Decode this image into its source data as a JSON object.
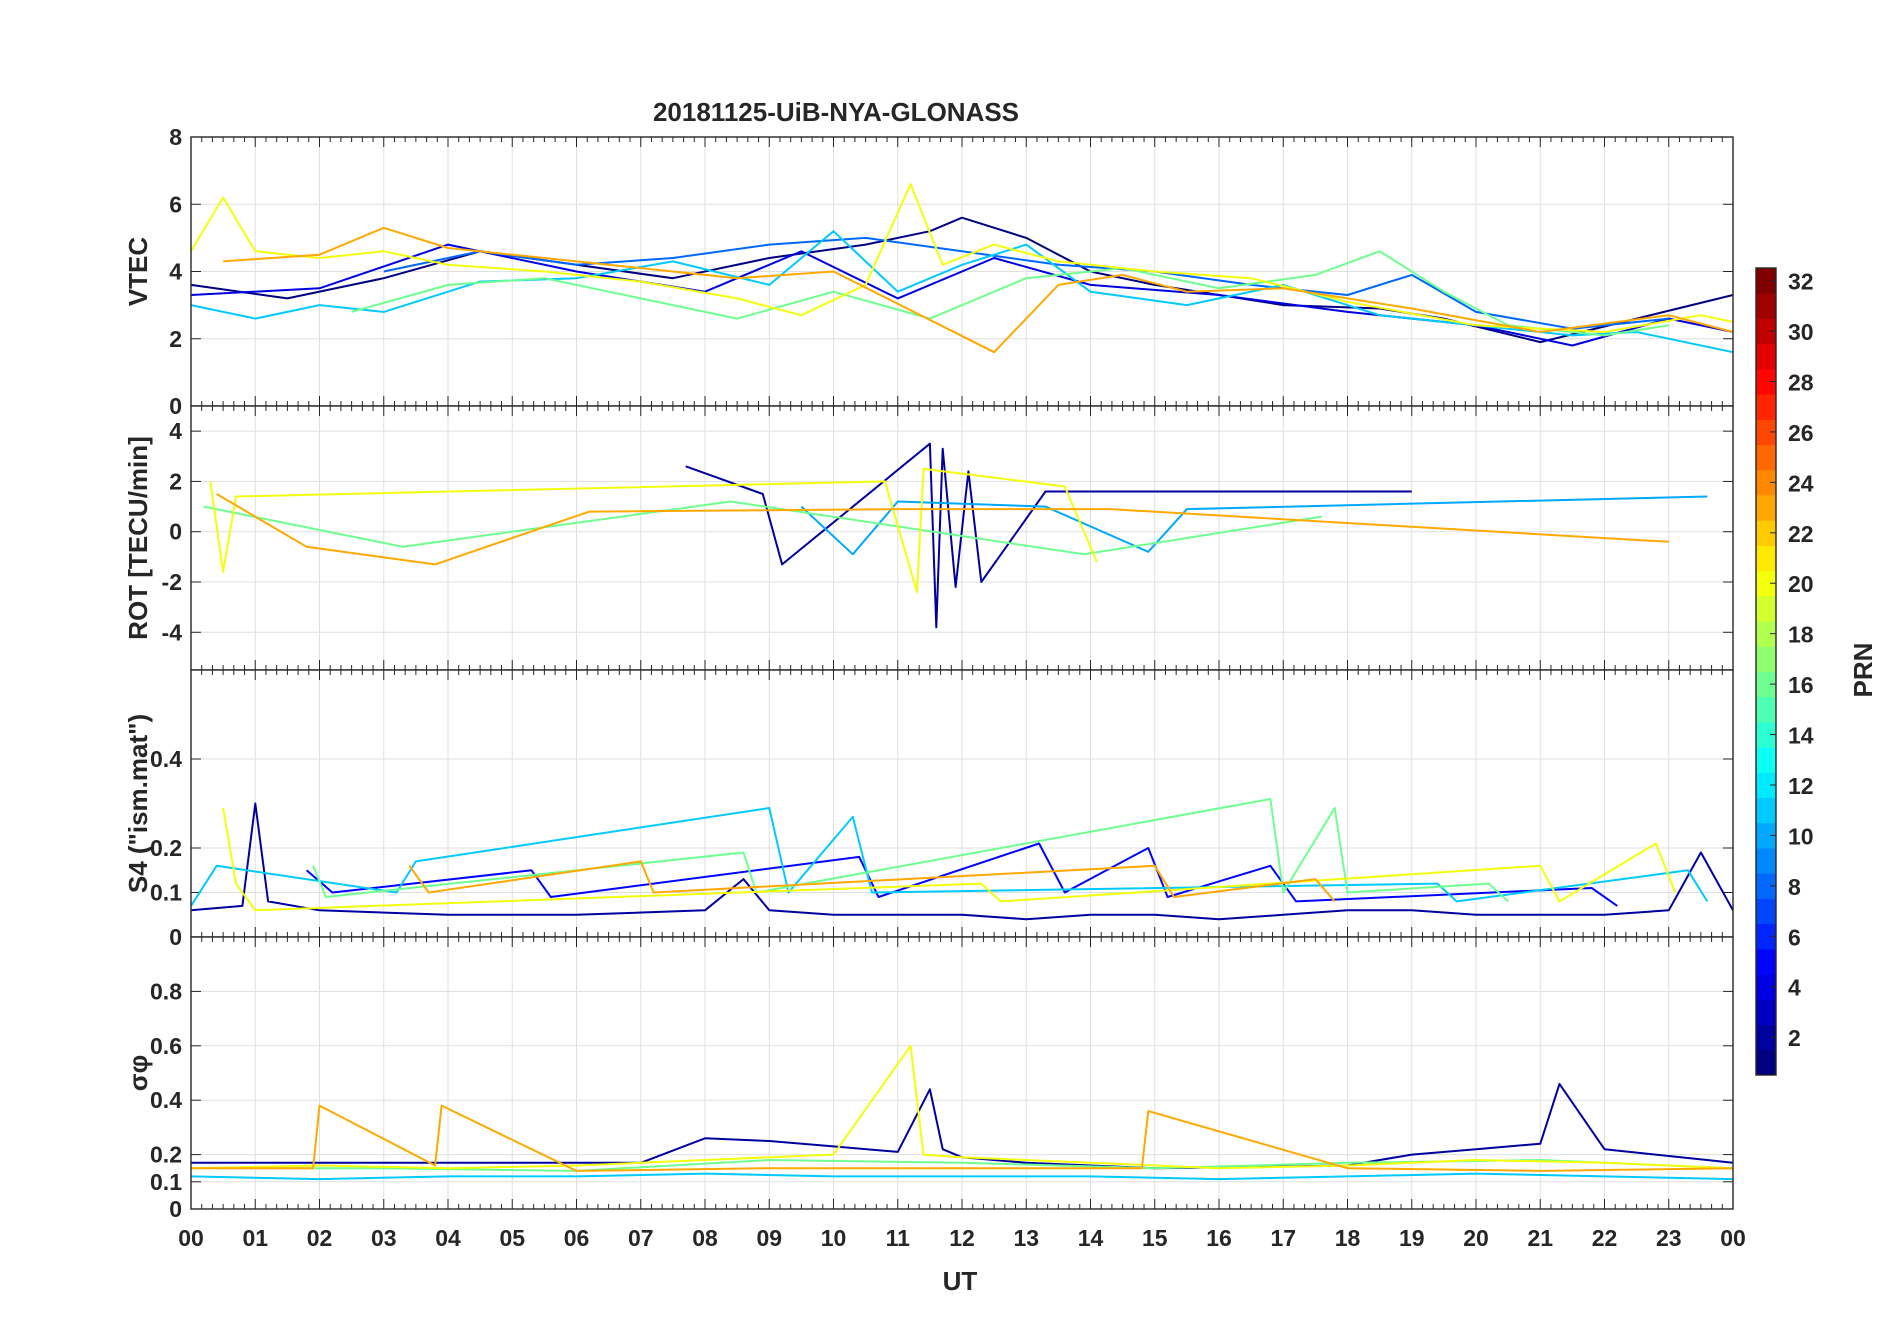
{
  "chart_data": {
    "type": "line",
    "title": "20181125-UiB-NYA-GLONASS",
    "xlabel": "UT",
    "x_tick_labels": [
      "00",
      "01",
      "02",
      "03",
      "04",
      "05",
      "06",
      "07",
      "08",
      "09",
      "10",
      "11",
      "12",
      "13",
      "14",
      "15",
      "16",
      "17",
      "18",
      "19",
      "20",
      "21",
      "22",
      "23",
      "00"
    ],
    "xlim": [
      0,
      24
    ],
    "grid": true,
    "colorbar": {
      "label": "PRN",
      "range": [
        1,
        32
      ],
      "tick_labels": [
        "2",
        "4",
        "6",
        "8",
        "10",
        "12",
        "14",
        "16",
        "18",
        "20",
        "22",
        "24",
        "26",
        "28",
        "30",
        "32"
      ],
      "placement": "right",
      "colormap": "jet"
    },
    "panels": [
      {
        "ylabel": "VTEC",
        "ylim": [
          0,
          8
        ],
        "yticks": [
          0,
          2,
          4,
          6,
          8
        ],
        "series": [
          {
            "prn": 1,
            "x": [
              0,
              1.5,
              3,
              4.5,
              6,
              7.5,
              9,
              10.5,
              11.5,
              12,
              13,
              14,
              15,
              17,
              18.5,
              19.5,
              21,
              22.5,
              24
            ],
            "y": [
              3.6,
              3.2,
              3.8,
              4.6,
              4.2,
              3.8,
              4.4,
              4.8,
              5.2,
              5.6,
              5.0,
              4.0,
              3.6,
              3.0,
              2.9,
              2.6,
              1.9,
              2.6,
              3.3
            ]
          },
          {
            "prn": 4,
            "x": [
              0,
              2,
              4,
              6,
              8,
              9.5,
              11,
              12.5,
              14,
              16,
              18,
              20,
              21.5,
              23,
              24
            ],
            "y": [
              3.3,
              3.5,
              4.8,
              4.0,
              3.4,
              4.6,
              3.2,
              4.4,
              3.6,
              3.3,
              2.8,
              2.4,
              1.8,
              2.6,
              2.2
            ]
          },
          {
            "prn": 8,
            "x": [
              3,
              4.5,
              6,
              7.5,
              9,
              10.5,
              12,
              13.5,
              15,
              16.5,
              18,
              19,
              20,
              21.5,
              23
            ],
            "y": [
              4.0,
              4.6,
              4.2,
              4.4,
              4.8,
              5.0,
              4.6,
              4.2,
              4.0,
              3.6,
              3.3,
              3.9,
              2.8,
              2.3,
              2.6
            ]
          },
          {
            "prn": 11,
            "x": [
              0,
              1,
              2,
              3,
              4.5,
              6,
              7.5,
              9,
              10,
              11,
              12,
              13,
              14,
              15.5,
              17,
              18.5,
              20,
              21.5,
              22.5,
              24
            ],
            "y": [
              3.0,
              2.6,
              3.0,
              2.8,
              3.7,
              3.8,
              4.3,
              3.6,
              5.2,
              3.4,
              4.2,
              4.8,
              3.4,
              3.0,
              3.6,
              2.7,
              2.4,
              2.1,
              2.2,
              1.6
            ]
          },
          {
            "prn": 16,
            "x": [
              2.5,
              4,
              5.5,
              7,
              8.5,
              10,
              11.5,
              13,
              14.5,
              16,
              17.5,
              18.5,
              19.5,
              20.5,
              22,
              23
            ],
            "y": [
              2.8,
              3.6,
              3.8,
              3.2,
              2.6,
              3.4,
              2.6,
              3.8,
              4.1,
              3.5,
              3.9,
              4.6,
              3.4,
              2.4,
              2.1,
              2.4
            ]
          },
          {
            "prn": 20,
            "x": [
              0,
              0.5,
              1,
              2,
              3,
              4,
              5.5,
              7,
              8.5,
              9.5,
              10.5,
              11.2,
              11.7,
              12.5,
              13.5,
              15,
              16.5,
              18,
              20,
              22,
              23.5,
              24
            ],
            "y": [
              4.6,
              6.2,
              4.6,
              4.4,
              4.6,
              4.2,
              4.0,
              3.7,
              3.2,
              2.7,
              3.6,
              6.6,
              4.2,
              4.8,
              4.3,
              4.0,
              3.8,
              3.1,
              2.4,
              2.2,
              2.7,
              2.5
            ]
          },
          {
            "prn": 23,
            "x": [
              0.5,
              2,
              3,
              4,
              5.5,
              7,
              8.5,
              10,
              12.5,
              13.5,
              14.5,
              15.5,
              17,
              19,
              21,
              23,
              24
            ],
            "y": [
              4.3,
              4.5,
              5.3,
              4.7,
              4.4,
              4.1,
              3.8,
              4.0,
              1.6,
              3.6,
              3.9,
              3.4,
              3.5,
              2.9,
              2.2,
              2.7,
              2.2
            ]
          }
        ]
      },
      {
        "ylabel": "ROT [TECU/min]",
        "ylim": [
          -5.5,
          5
        ],
        "yticks": [
          -4,
          -2,
          0,
          2,
          4
        ],
        "series": [
          {
            "prn": 2,
            "x": [
              7.7,
              8.9,
              9.2,
              11.5,
              11.6,
              11.7,
              11.9,
              12.1,
              12.3,
              13.3,
              19.0
            ],
            "y": [
              2.6,
              1.5,
              -1.3,
              3.5,
              -3.8,
              3.3,
              -2.2,
              2.4,
              -2.0,
              1.6,
              1.6
            ]
          },
          {
            "prn": 10,
            "x": [
              9.5,
              10.3,
              11.0,
              13.3,
              14.9,
              15.5,
              23.6
            ],
            "y": [
              1.0,
              -0.9,
              1.2,
              1.0,
              -0.8,
              0.9,
              1.4
            ]
          },
          {
            "prn": 16,
            "x": [
              0.2,
              3.3,
              8.4,
              13.9,
              17.6
            ],
            "y": [
              1.0,
              -0.6,
              1.2,
              -0.9,
              0.6
            ]
          },
          {
            "prn": 20,
            "x": [
              0.3,
              0.5,
              0.7,
              10.8,
              11.3,
              11.4,
              13.6,
              14.1
            ],
            "y": [
              2.0,
              -1.6,
              1.4,
              2.0,
              -2.4,
              2.5,
              1.8,
              -1.2
            ]
          },
          {
            "prn": 23,
            "x": [
              0.4,
              1.8,
              3.8,
              6.2,
              11.1,
              14.3,
              23.0
            ],
            "y": [
              1.5,
              -0.6,
              -1.3,
              0.8,
              0.9,
              0.9,
              -0.4
            ]
          }
        ]
      },
      {
        "ylabel": "S4 (\"ism.mat\")",
        "ylim": [
          0,
          0.6
        ],
        "yticks": [
          0,
          0.1,
          0.2,
          0.4
        ],
        "series": [
          {
            "prn": 2,
            "x": [
              0,
              0.8,
              1.0,
              1.2,
              2,
              4,
              6,
              8,
              8.6,
              9,
              10,
              11,
              12,
              13,
              14,
              15,
              16,
              17,
              18,
              19,
              20,
              21,
              22,
              23,
              23.5,
              24
            ],
            "y": [
              0.06,
              0.07,
              0.3,
              0.08,
              0.06,
              0.05,
              0.05,
              0.06,
              0.13,
              0.06,
              0.05,
              0.05,
              0.05,
              0.04,
              0.05,
              0.05,
              0.04,
              0.05,
              0.06,
              0.06,
              0.05,
              0.05,
              0.05,
              0.06,
              0.19,
              0.06
            ]
          },
          {
            "prn": 5,
            "x": [
              1.8,
              2.2,
              5.3,
              5.6,
              10.4,
              10.7,
              13.2,
              13.6,
              14.9,
              15.2,
              16.8,
              17.2,
              21.8,
              22.2
            ],
            "y": [
              0.15,
              0.1,
              0.15,
              0.09,
              0.18,
              0.09,
              0.21,
              0.1,
              0.2,
              0.09,
              0.16,
              0.08,
              0.11,
              0.07
            ]
          },
          {
            "prn": 11,
            "x": [
              0,
              0.4,
              3.2,
              3.5,
              9.0,
              9.3,
              10.3,
              10.6,
              19.4,
              19.7,
              23.3,
              23.6
            ],
            "y": [
              0.07,
              0.16,
              0.1,
              0.17,
              0.29,
              0.1,
              0.27,
              0.1,
              0.12,
              0.08,
              0.15,
              0.08
            ]
          },
          {
            "prn": 16,
            "x": [
              1.9,
              2.1,
              8.6,
              8.8,
              16.8,
              17.0,
              17.8,
              18.0,
              20.2,
              20.5
            ],
            "y": [
              0.16,
              0.09,
              0.19,
              0.1,
              0.31,
              0.1,
              0.29,
              0.1,
              0.12,
              0.08
            ]
          },
          {
            "prn": 20,
            "x": [
              0.5,
              0.7,
              1.0,
              12.3,
              12.6,
              21.0,
              21.3,
              22.8,
              23.1
            ],
            "y": [
              0.29,
              0.12,
              0.06,
              0.12,
              0.08,
              0.16,
              0.08,
              0.21,
              0.1
            ]
          },
          {
            "prn": 23,
            "x": [
              3.4,
              3.7,
              7.0,
              7.2,
              15.0,
              15.3,
              17.5,
              17.8
            ],
            "y": [
              0.16,
              0.1,
              0.17,
              0.1,
              0.16,
              0.09,
              0.13,
              0.08
            ]
          }
        ]
      },
      {
        "ylabel": "σφ",
        "ylim": [
          0,
          1
        ],
        "yticks": [
          0,
          0.1,
          0.2,
          0.4,
          0.6,
          0.8
        ],
        "series": [
          {
            "prn": 2,
            "x": [
              0,
              7,
              8,
              9,
              10,
              11,
              11.5,
              11.7,
              12,
              13,
              15,
              18,
              19,
              20,
              21,
              21.3,
              22,
              24
            ],
            "y": [
              0.17,
              0.17,
              0.26,
              0.25,
              0.23,
              0.21,
              0.44,
              0.22,
              0.19,
              0.17,
              0.15,
              0.16,
              0.2,
              0.22,
              0.24,
              0.46,
              0.22,
              0.17
            ]
          },
          {
            "prn": 11,
            "x": [
              0,
              2,
              4,
              6,
              8,
              10,
              12,
              14,
              16,
              18,
              20,
              22,
              24
            ],
            "y": [
              0.12,
              0.11,
              0.12,
              0.12,
              0.13,
              0.12,
              0.12,
              0.12,
              0.11,
              0.12,
              0.13,
              0.12,
              0.11
            ]
          },
          {
            "prn": 16,
            "x": [
              0,
              3,
              6,
              9,
              12,
              15,
              18,
              21,
              24
            ],
            "y": [
              0.15,
              0.15,
              0.14,
              0.18,
              0.17,
              0.15,
              0.17,
              0.18,
              0.15
            ]
          },
          {
            "prn": 20,
            "x": [
              0,
              2,
              4,
              6,
              8,
              10,
              11.2,
              11.4,
              12,
              14,
              16,
              18,
              20,
              22,
              24
            ],
            "y": [
              0.15,
              0.16,
              0.15,
              0.16,
              0.18,
              0.2,
              0.6,
              0.2,
              0.19,
              0.17,
              0.15,
              0.16,
              0.18,
              0.17,
              0.15
            ]
          },
          {
            "prn": 23,
            "x": [
              0,
              1.9,
              2.0,
              3.8,
              3.9,
              6,
              9,
              12,
              14.8,
              14.9,
              18,
              21,
              24
            ],
            "y": [
              0.15,
              0.15,
              0.38,
              0.16,
              0.38,
              0.14,
              0.15,
              0.15,
              0.15,
              0.36,
              0.15,
              0.14,
              0.15
            ]
          }
        ]
      }
    ]
  }
}
